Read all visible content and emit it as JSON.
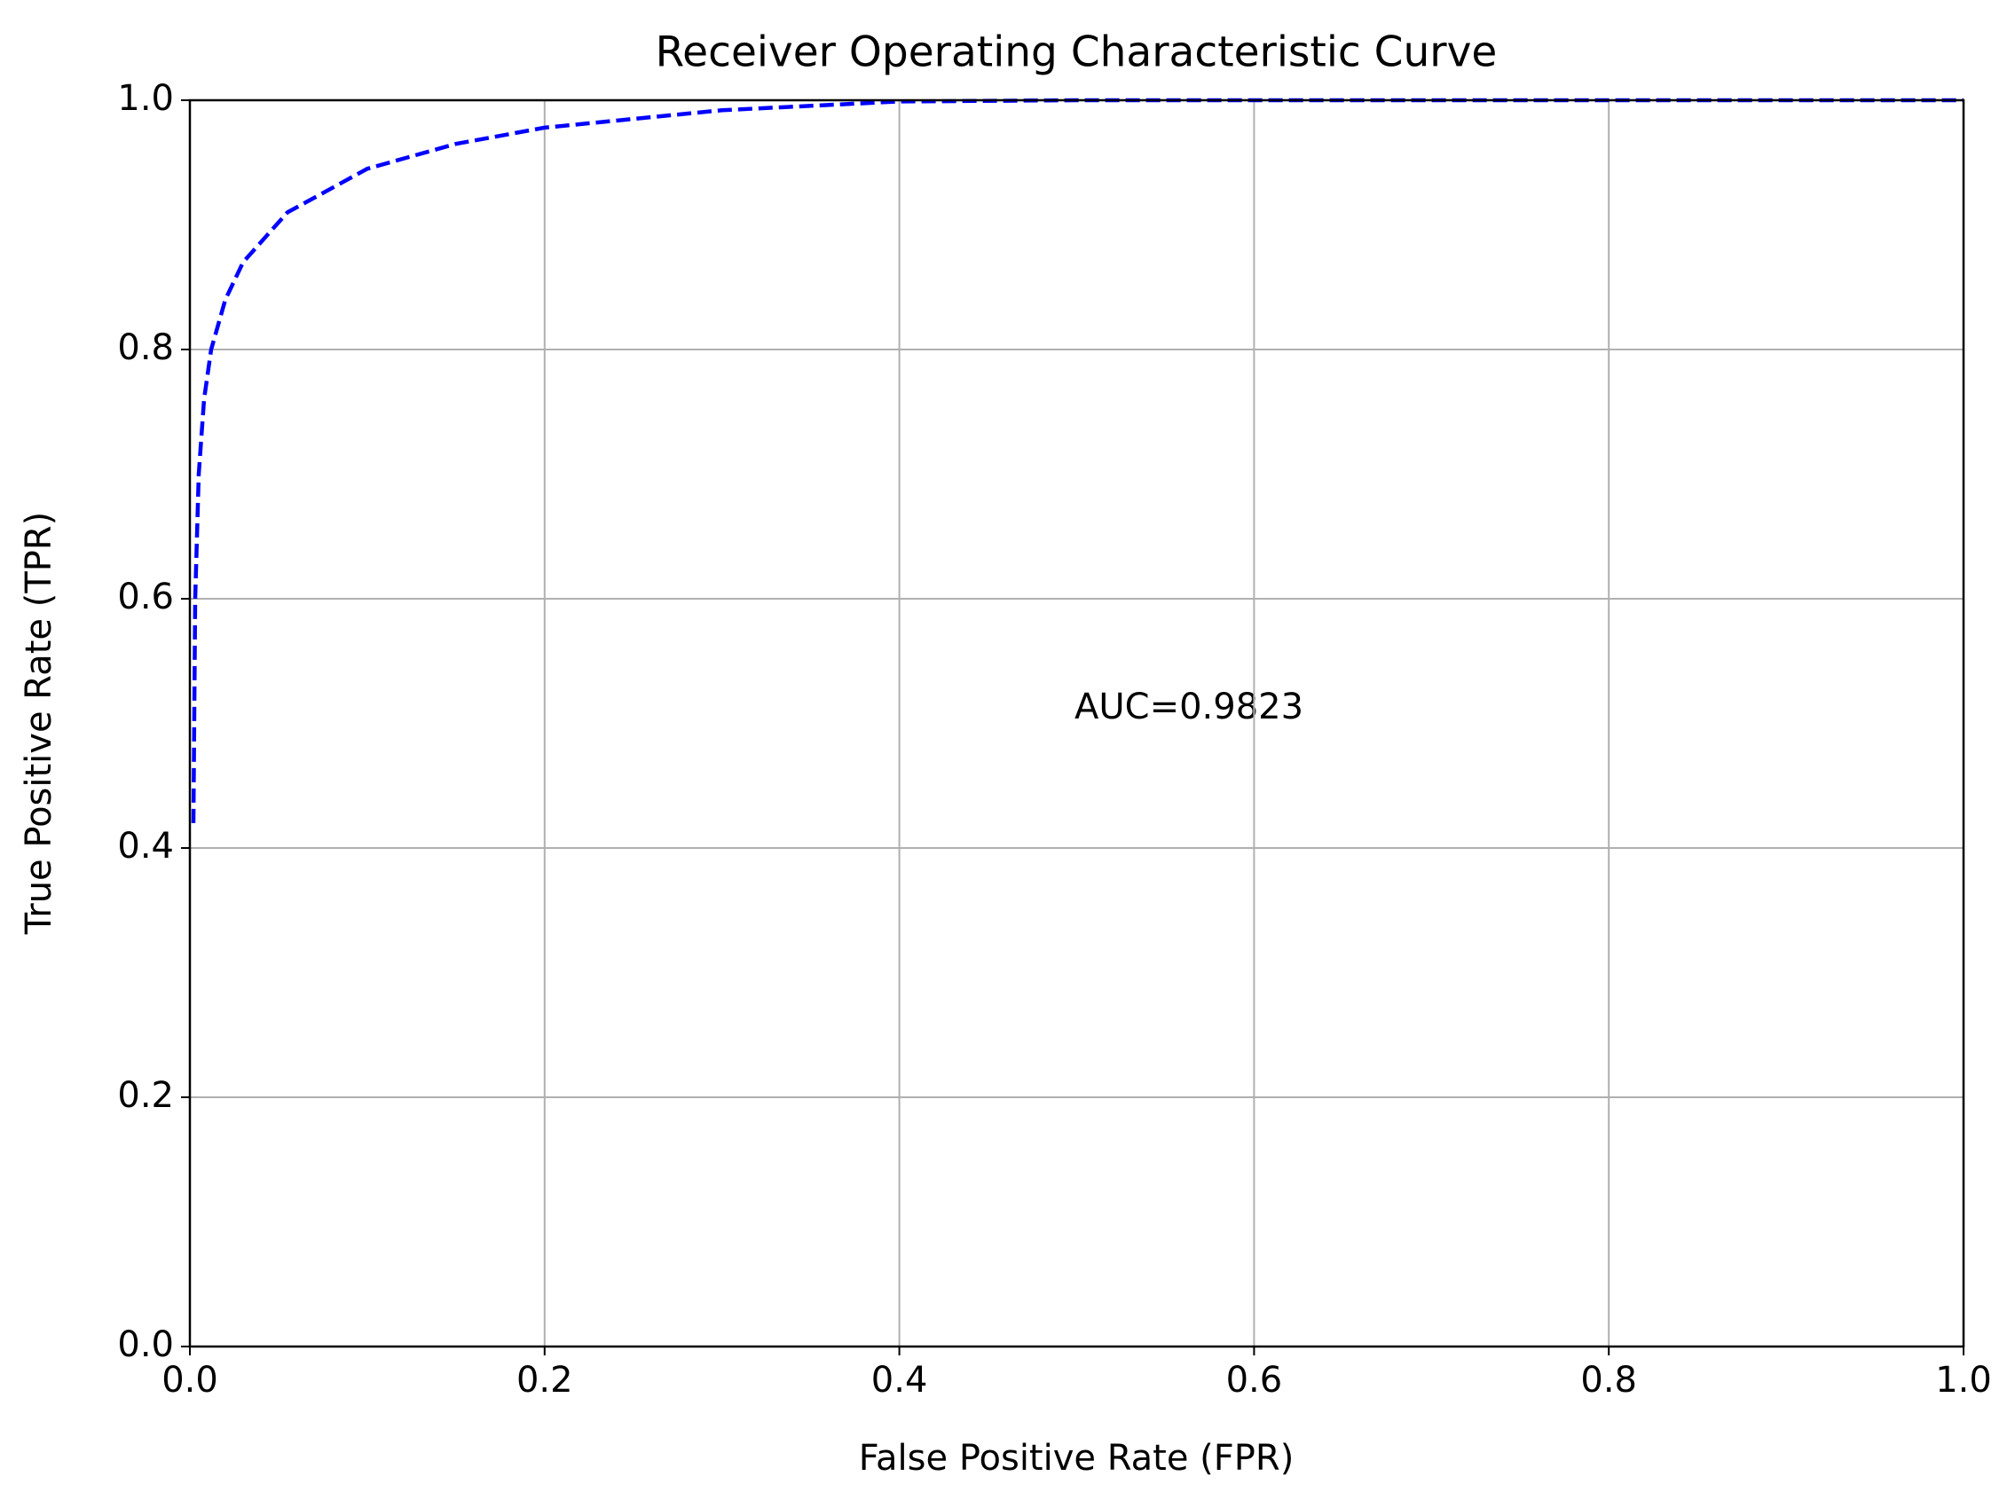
{
  "chart_data": {
    "type": "line",
    "title": "Receiver Operating Characteristic Curve",
    "x_label": "False Positive Rate (FPR)",
    "y_label": "True Positive Rate (TPR)",
    "annotation": "AUC=0.9823",
    "x": [
      0.002,
      0.003,
      0.005,
      0.008,
      0.012,
      0.02,
      0.03,
      0.055,
      0.1,
      0.15,
      0.2,
      0.3,
      0.4,
      0.5,
      1.0
    ],
    "series": [
      {
        "color": "#0000ff",
        "linestyle": "dashed",
        "values": [
          0.42,
          0.6,
          0.7,
          0.76,
          0.8,
          0.84,
          0.87,
          0.91,
          0.945,
          0.965,
          0.978,
          0.992,
          0.999,
          1.0,
          1.0
        ]
      }
    ],
    "xlim": [
      0,
      1
    ],
    "ylim": [
      0,
      1
    ],
    "xticks": [
      {
        "value": 0,
        "label": "0.0"
      },
      0.2,
      0.4,
      0.6,
      0.8,
      {
        "value": 1,
        "label": "1.0"
      }
    ],
    "yticks": [
      {
        "value": 0,
        "label": "0.0"
      },
      0.2,
      0.4,
      0.6,
      0.8,
      {
        "value": 1,
        "label": "1.0"
      }
    ],
    "grid": true
  }
}
